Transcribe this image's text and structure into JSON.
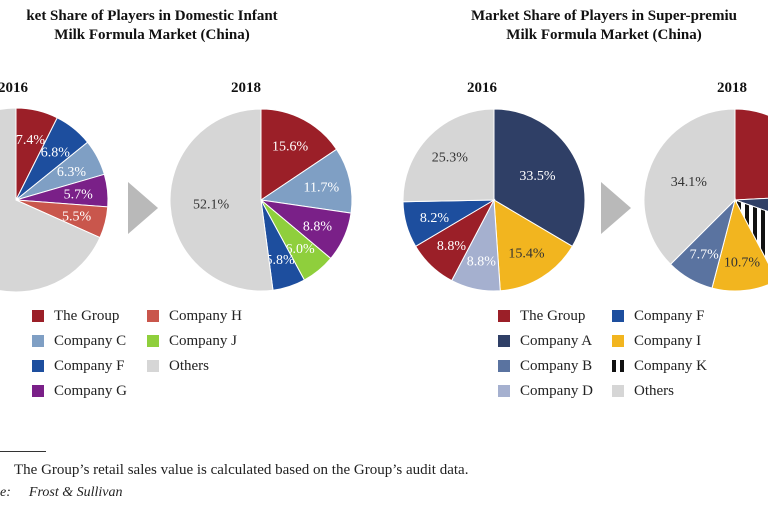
{
  "chart_data": [
    {
      "type": "pie",
      "title_lines": [
        "ket Share of Players in Domestic Infant",
        "Milk Formula Market (China)"
      ],
      "pies": [
        {
          "year": "2016",
          "slices": [
            {
              "name": "The Group",
              "value": 7.4,
              "label": "7.4%",
              "color": "#9b1f28"
            },
            {
              "name": "Company F",
              "value": 6.8,
              "label": "6.8%",
              "color": "#1d4e9e"
            },
            {
              "name": "Company C",
              "value": 6.3,
              "label": "6.3%",
              "color": "#7f9fc4"
            },
            {
              "name": "Company G",
              "value": 5.7,
              "label": "5.7%",
              "color": "#7a2088"
            },
            {
              "name": "Company H",
              "value": 5.5,
              "label": "5.5%",
              "color": "#c9564c"
            },
            {
              "name": "Others",
              "value": 68.3,
              "label": "",
              "color": "#d6d6d6"
            }
          ]
        },
        {
          "year": "2018",
          "slices": [
            {
              "name": "The Group",
              "value": 15.6,
              "label": "15.6%",
              "color": "#9b1f28"
            },
            {
              "name": "Company C",
              "value": 11.7,
              "label": "11.7%",
              "color": "#7f9fc4"
            },
            {
              "name": "Company G",
              "value": 8.8,
              "label": "8.8%",
              "color": "#7a2088"
            },
            {
              "name": "Company J",
              "value": 6.0,
              "label": "6.0%",
              "color": "#8fcf3c"
            },
            {
              "name": "Company F",
              "value": 5.8,
              "label": "5.8%",
              "color": "#1d4e9e"
            },
            {
              "name": "Others",
              "value": 52.1,
              "label": "52.1%",
              "color": "#d6d6d6"
            }
          ]
        }
      ],
      "legend": [
        {
          "name": "The Group",
          "color": "#9b1f28"
        },
        {
          "name": "Company H",
          "color": "#c9564c"
        },
        {
          "name": "Company C",
          "color": "#7f9fc4"
        },
        {
          "name": "Company J",
          "color": "#8fcf3c"
        },
        {
          "name": "Company F",
          "color": "#1d4e9e"
        },
        {
          "name": "Others",
          "color": "#d6d6d6"
        },
        {
          "name": "Company G",
          "color": "#7a2088"
        }
      ]
    },
    {
      "type": "pie",
      "title_lines": [
        "Market Share of Players in Super-premiu",
        "Milk Formula Market (China)"
      ],
      "pies": [
        {
          "year": "2016",
          "slices": [
            {
              "name": "Company A",
              "value": 33.5,
              "label": "33.5%",
              "color": "#2f3f66"
            },
            {
              "name": "Company I",
              "value": 15.4,
              "label": "15.4%",
              "color": "#f2b51f"
            },
            {
              "name": "Company D",
              "value": 8.8,
              "label": "8.8%",
              "color": "#a5b0cf"
            },
            {
              "name": "The Group",
              "value": 8.8,
              "label": "8.8%",
              "color": "#9b1f28"
            },
            {
              "name": "Company F",
              "value": 8.2,
              "label": "8.2%",
              "color": "#1d4e9e"
            },
            {
              "name": "Others",
              "value": 25.3,
              "label": "25.3%",
              "color": "#d6d6d6"
            }
          ]
        },
        {
          "year": "2018",
          "slices": [
            {
              "name": "The Group",
              "value": 22.0,
              "label": "2",
              "color": "#9b1f28"
            },
            {
              "name": "Company A",
              "value": 5.6,
              "label": "",
              "color": "#2f3f66"
            },
            {
              "name": "Company K",
              "value": 10.9,
              "label": "10.9",
              "color": "#111111"
            },
            {
              "name": "Company I",
              "value": 10.7,
              "label": "10.7%",
              "color": "#f2b51f"
            },
            {
              "name": "Company B",
              "value": 7.7,
              "label": "7.7%",
              "color": "#5a73a0"
            },
            {
              "name": "Others",
              "value": 34.1,
              "label": "34.1%",
              "color": "#d6d6d6"
            }
          ]
        }
      ],
      "legend": [
        {
          "name": "The Group",
          "color": "#9b1f28"
        },
        {
          "name": "Company F",
          "color": "#1d4e9e"
        },
        {
          "name": "Company A",
          "color": "#2f3f66"
        },
        {
          "name": "Company I",
          "color": "#f2b51f"
        },
        {
          "name": "Company B",
          "color": "#5a73a0"
        },
        {
          "name": "Company K",
          "color": "#111111"
        },
        {
          "name": "Company D",
          "color": "#a5b0cf"
        },
        {
          "name": "Others",
          "color": "#d6d6d6"
        }
      ]
    }
  ],
  "footnote": "The Group’s retail sales value is calculated based on the Group’s audit data.",
  "source_prefix": "e:",
  "source_name": "Frost & Sullivan"
}
